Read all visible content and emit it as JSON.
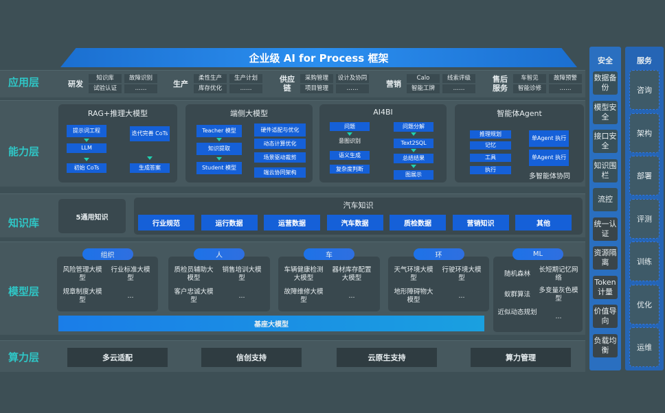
{
  "title": "企业级 AI for Process 框架",
  "layers": [
    "应用层",
    "能力层",
    "知识库",
    "模型层",
    "算力层"
  ],
  "app_groups": [
    {
      "name": "研发",
      "items": [
        "知识库",
        "故障识别",
        "试验认证",
        "……"
      ]
    },
    {
      "name": "生产",
      "items": [
        "柔性生产",
        "生产计划",
        "库存优化",
        "……"
      ]
    },
    {
      "name": "供应链",
      "items": [
        "采购管理",
        "设计及协同",
        "项目管理",
        "……"
      ]
    },
    {
      "name": "营销",
      "items": [
        "Calo",
        "线索评级",
        "智能工牌",
        "……"
      ]
    },
    {
      "name": "售后服务",
      "items": [
        "车智见",
        "故障预警",
        "智能诊修",
        "……"
      ]
    }
  ],
  "capability": {
    "rag": {
      "title": "RAG+推理大模型",
      "steps": [
        "提示词工程",
        "LLM",
        "初始 CoTs"
      ],
      "iter": "迭代完善 CoTs",
      "gen": "生成答案"
    },
    "edge": {
      "title": "端侧大模型",
      "chain": [
        "Teacher 模型",
        "知识提取",
        "Student 模型"
      ],
      "opts": [
        "硬件适配与优化",
        "动态计算优化",
        "场景驱动裁剪",
        "端云协同架构"
      ]
    },
    "ai4bi": {
      "title": "AI4BI",
      "left_top": "问题",
      "left_mid": "意图识别",
      "left": [
        "语义生成",
        "复杂度判断"
      ],
      "right": [
        "问题分解",
        "Text2SQL",
        "总结结果",
        "图展示"
      ]
    },
    "agent": {
      "title": "智能体Agent",
      "items": [
        "推理规划",
        "记忆",
        "工具",
        "执行"
      ],
      "exec": [
        "单Agent 执行",
        "单Agent 执行"
      ],
      "footer": "多智能体协同"
    }
  },
  "knowledge": {
    "general": "5通用知识",
    "auto_title": "汽车知识",
    "auto_items": [
      "行业规范",
      "运行数据",
      "运营数据",
      "汽车数据",
      "质检数据",
      "营销知识",
      "其他"
    ]
  },
  "models": [
    {
      "name": "组织",
      "items": [
        "风险管理大模型",
        "行业标准大模型",
        "规章制度大模型",
        "..."
      ]
    },
    {
      "name": "人",
      "items": [
        "质检员辅助大模型",
        "销售培训大模型",
        "客户忠诚大模型",
        "..."
      ]
    },
    {
      "name": "车",
      "items": [
        "车辆健康检测大模型",
        "器材库存配置大模型",
        "故障维修大模型",
        "..."
      ]
    },
    {
      "name": "环",
      "items": [
        "天气环境大模型",
        "行驶环境大模型",
        "地形障碍物大模型",
        "..."
      ]
    },
    {
      "name": "ML",
      "items": [
        "随机森林",
        "长短期记忆网络",
        "蚁群算法",
        "多变量灰色模型",
        "近似动态规划",
        "..."
      ]
    }
  ],
  "base_model": "基座大模型",
  "compute": [
    "多云适配",
    "信创支持",
    "云原生支持",
    "算力管理"
  ],
  "security": {
    "title": "安全",
    "items": [
      "数据备份",
      "模型安全",
      "接口安全",
      "知识围栏",
      "流控",
      "统一认证",
      "资源隔离",
      "Token计量",
      "价值导向",
      "负载均衡"
    ]
  },
  "service": {
    "title": "服务",
    "items": [
      "咨询",
      "架构",
      "部署",
      "评测",
      "训练",
      "优化",
      "运维"
    ]
  },
  "colors": {
    "accent": "#1560d8",
    "layer_label": "#2fc6c6",
    "background": "#3d4f55"
  }
}
